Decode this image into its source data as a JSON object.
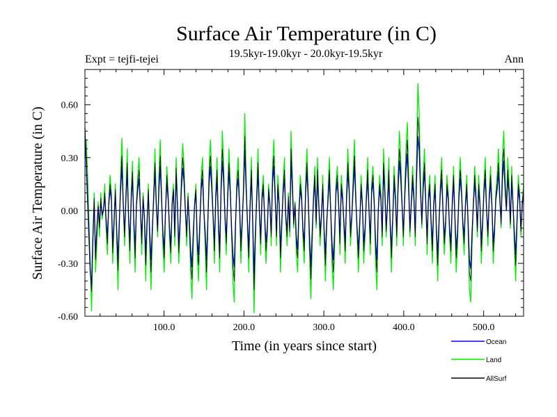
{
  "chart_data": {
    "type": "line",
    "title": "Surface Air Temperature (in C)",
    "subtitle": "19.5kyr-19.0kyr - 20.0kyr-19.5kyr",
    "expt_label": "Expt = tejfi-tejei",
    "season_label": "Ann",
    "xlabel": "Time (in years since start)",
    "ylabel": "Surface Air Temperature (in C)",
    "xlim": [
      1,
      550
    ],
    "ylim": [
      -0.6,
      0.8
    ],
    "xticks": [
      100,
      200,
      300,
      400,
      500
    ],
    "xtick_labels": [
      "100.0",
      "200.0",
      "300.0",
      "400.0",
      "500.0"
    ],
    "yticks": [
      -0.6,
      -0.3,
      0.0,
      0.3,
      0.6
    ],
    "ytick_labels": [
      "-0.60",
      "-0.30",
      "0.00",
      "0.30",
      "0.60"
    ],
    "zero_line": true,
    "grid": false,
    "legend_position": "bottom-right",
    "series": [
      {
        "name": "Land",
        "color": "#00ee00",
        "values": [
          0.3,
          0.4,
          0.2,
          -0.05,
          -0.3,
          -0.57,
          -0.2,
          0.1,
          -0.35,
          -0.2,
          0.05,
          -0.15,
          0.1,
          -0.05,
          0.0,
          0.15,
          -0.1,
          -0.25,
          0.05,
          0.2,
          0.1,
          -0.3,
          -0.1,
          0.15,
          -0.15,
          -0.45,
          -0.1,
          0.2,
          0.41,
          0.05,
          -0.2,
          0.1,
          0.35,
          -0.05,
          -0.3,
          0.1,
          0.28,
          -0.1,
          -0.35,
          0.05,
          0.2,
          0.3,
          0.0,
          -0.25,
          0.1,
          -0.05,
          -0.4,
          -0.1,
          0.15,
          -0.2,
          -0.45,
          -0.15,
          0.1,
          0.35,
          0.05,
          -0.15,
          0.2,
          0.4,
          0.1,
          -0.2,
          -0.35,
          0.0,
          0.25,
          0.1,
          -0.15,
          -0.3,
          0.05,
          0.15,
          -0.2,
          0.3,
          0.05,
          -0.3,
          -0.1,
          0.2,
          0.38,
          0.25,
          0.0,
          -0.2,
          0.1,
          -0.1,
          -0.35,
          -0.5,
          -0.2,
          0.05,
          0.15,
          -0.25,
          -0.4,
          -0.1,
          0.2,
          0.3,
          0.0,
          -0.2,
          -0.45,
          -0.1,
          0.25,
          0.4,
          0.2,
          -0.05,
          -0.3,
          0.1,
          0.3,
          -0.1,
          -0.35,
          0.15,
          0.45,
          0.25,
          -0.05,
          -0.25,
          0.1,
          0.35,
          0.15,
          -0.15,
          -0.4,
          -0.52,
          -0.1,
          0.2,
          0.3,
          0.05,
          -0.3,
          -0.1,
          0.15,
          0.55,
          0.2,
          -0.1,
          -0.35,
          0.05,
          0.3,
          -0.1,
          -0.58,
          -0.2,
          0.1,
          0.35,
          0.0,
          -0.25,
          0.1,
          0.2,
          -0.05,
          -0.3,
          -0.15,
          0.15,
          0.05,
          -0.2,
          0.25,
          0.4,
          0.1,
          -0.2,
          0.2,
          0.05,
          -0.35,
          -0.1,
          0.15,
          0.3,
          -0.05,
          -0.2,
          0.1,
          -0.15,
          0.45,
          0.2,
          -0.1,
          0.05,
          -0.25,
          -0.35,
          0.0,
          0.2,
          0.1,
          -0.15,
          -0.3,
          0.15,
          0.35,
          0.1,
          -0.25,
          -0.5,
          -0.2,
          0.1,
          0.25,
          -0.1,
          0.3,
          0.05,
          -0.2,
          -0.05,
          0.2,
          -0.15,
          -0.4,
          -0.1,
          0.1,
          0.3,
          0.0,
          -0.3,
          -0.45,
          -0.2,
          0.15,
          0.25,
          0.05,
          -0.25,
          0.2,
          0.1,
          -0.1,
          -0.3,
          0.1,
          0.35,
          0.15,
          -0.2,
          -0.05,
          0.2,
          0.4,
          0.1,
          -0.15,
          -0.35,
          -0.1,
          0.2,
          0.05,
          -0.3,
          -0.15,
          0.1,
          0.3,
          0.0,
          -0.25,
          0.15,
          0.25,
          0.05,
          -0.3,
          -0.45,
          0.0,
          0.2,
          0.1,
          -0.2,
          0.35,
          0.15,
          -0.15,
          0.05,
          0.3,
          -0.1,
          -0.35,
          -0.05,
          0.25,
          0.1,
          -0.2,
          0.2,
          0.45,
          0.3,
          0.05,
          -0.2,
          0.1,
          0.35,
          0.5,
          0.2,
          -0.15,
          0.05,
          0.25,
          0.1,
          -0.2,
          0.3,
          0.72,
          0.55,
          0.15,
          -0.1,
          0.2,
          0.35,
          0.05,
          -0.25,
          0.1,
          0.2,
          -0.1,
          -0.3,
          0.05,
          0.2,
          -0.15,
          -0.4,
          -0.1,
          0.15,
          0.3,
          0.0,
          -0.25,
          -0.1,
          0.2,
          0.1,
          -0.15,
          -0.3,
          0.05,
          0.25,
          -0.05,
          -0.35,
          -0.2,
          0.1,
          0.3,
          0.15,
          -0.1,
          -0.25,
          0.05,
          0.2,
          -0.1,
          -0.45,
          -0.52,
          -0.2,
          0.05,
          0.25,
          0.1,
          -0.15,
          0.2,
          0.05,
          -0.3,
          -0.1,
          0.15,
          0.3,
          0.0,
          -0.2,
          0.1,
          0.25,
          0.05,
          -0.3,
          -0.15,
          0.1,
          0.2,
          0.35,
          0.1,
          -0.1,
          0.3,
          0.45,
          0.2,
          0.0,
          0.3,
          0.15,
          -0.1,
          0.25,
          0.05,
          -0.2,
          -0.4,
          -0.1,
          0.2,
          0.1,
          -0.15,
          0.05,
          0.15
        ]
      },
      {
        "name": "Ocean",
        "color": "#0000ff",
        "values": [
          0.47,
          0.25,
          0.05,
          -0.15,
          -0.35,
          -0.42,
          -0.15,
          0.05,
          -0.25,
          -0.1,
          0.02,
          -0.08,
          0.05,
          -0.02,
          0.0,
          0.08,
          -0.05,
          -0.15,
          0.03,
          0.12,
          0.06,
          -0.2,
          -0.06,
          0.1,
          -0.1,
          -0.28,
          -0.06,
          0.12,
          0.25,
          0.03,
          -0.12,
          0.06,
          0.22,
          -0.03,
          -0.18,
          0.06,
          0.18,
          -0.06,
          -0.22,
          0.03,
          0.12,
          0.18,
          0.0,
          -0.15,
          0.06,
          -0.03,
          -0.25,
          -0.06,
          0.1,
          -0.12,
          -0.28,
          -0.1,
          0.06,
          0.22,
          0.03,
          -0.1,
          0.12,
          0.25,
          0.06,
          -0.12,
          -0.22,
          0.0,
          0.16,
          0.06,
          -0.1,
          -0.2,
          0.03,
          0.1,
          -0.12,
          0.2,
          0.03,
          -0.2,
          -0.06,
          0.12,
          0.24,
          0.16,
          0.0,
          -0.12,
          0.06,
          -0.06,
          -0.22,
          -0.32,
          -0.12,
          0.03,
          0.1,
          -0.16,
          -0.25,
          -0.06,
          0.12,
          0.18,
          0.0,
          -0.12,
          -0.28,
          -0.06,
          0.16,
          0.25,
          0.12,
          -0.03,
          -0.18,
          0.06,
          0.18,
          -0.06,
          -0.22,
          0.1,
          0.28,
          0.16,
          -0.03,
          -0.15,
          0.06,
          0.22,
          0.1,
          -0.1,
          -0.25,
          -0.32,
          -0.06,
          0.12,
          0.18,
          0.03,
          -0.18,
          -0.06,
          0.1,
          0.34,
          0.12,
          -0.06,
          -0.22,
          0.03,
          0.18,
          -0.06,
          -0.36,
          -0.12,
          0.06,
          0.22,
          0.0,
          -0.15,
          0.06,
          0.12,
          -0.03,
          -0.18,
          -0.1,
          0.1,
          0.03,
          -0.12,
          0.16,
          0.25,
          0.06,
          -0.12,
          0.12,
          0.03,
          -0.22,
          -0.06,
          0.1,
          0.18,
          -0.03,
          -0.12,
          0.06,
          -0.1,
          0.28,
          0.12,
          -0.06,
          0.03,
          -0.15,
          -0.22,
          0.0,
          0.12,
          0.06,
          -0.1,
          -0.18,
          0.1,
          0.22,
          0.06,
          -0.15,
          -0.32,
          -0.12,
          0.06,
          0.16,
          -0.06,
          0.18,
          0.03,
          -0.12,
          -0.03,
          0.12,
          -0.1,
          -0.25,
          -0.06,
          0.06,
          0.18,
          0.0,
          -0.18,
          -0.28,
          -0.12,
          0.1,
          0.16,
          0.03,
          -0.15,
          0.12,
          0.06,
          -0.06,
          -0.18,
          0.06,
          0.22,
          0.1,
          -0.12,
          -0.03,
          0.12,
          0.25,
          0.06,
          -0.1,
          -0.22,
          -0.06,
          0.12,
          0.03,
          -0.18,
          -0.1,
          0.06,
          0.18,
          0.0,
          -0.15,
          0.1,
          0.16,
          0.03,
          -0.18,
          -0.28,
          0.0,
          0.12,
          0.06,
          -0.12,
          0.22,
          0.1,
          -0.1,
          0.03,
          0.18,
          -0.06,
          -0.22,
          -0.03,
          0.16,
          0.06,
          -0.12,
          0.12,
          0.28,
          0.18,
          0.03,
          -0.12,
          0.06,
          0.22,
          0.32,
          0.12,
          -0.1,
          0.03,
          0.16,
          0.06,
          -0.12,
          0.18,
          0.42,
          0.34,
          0.1,
          -0.06,
          0.12,
          0.22,
          0.03,
          -0.15,
          0.06,
          0.12,
          -0.06,
          -0.18,
          0.03,
          0.12,
          -0.1,
          -0.25,
          -0.06,
          0.1,
          0.18,
          0.0,
          -0.15,
          -0.06,
          0.12,
          0.06,
          -0.1,
          -0.18,
          0.03,
          0.16,
          -0.03,
          -0.22,
          -0.12,
          0.06,
          0.18,
          0.1,
          -0.06,
          -0.15,
          0.03,
          0.12,
          -0.06,
          -0.28,
          -0.33,
          -0.12,
          0.03,
          0.16,
          0.06,
          -0.1,
          0.12,
          0.03,
          -0.18,
          -0.06,
          0.1,
          0.18,
          0.0,
          -0.12,
          0.06,
          0.16,
          0.03,
          -0.18,
          -0.1,
          0.06,
          0.12,
          0.22,
          0.06,
          -0.06,
          0.18,
          0.28,
          0.12,
          0.0,
          0.18,
          0.1,
          -0.06,
          0.16,
          0.03,
          -0.12,
          -0.25,
          -0.06,
          0.12,
          0.06,
          -0.1,
          0.03,
          0.1
        ]
      },
      {
        "name": "AllSurf",
        "color": "#000000",
        "values": [
          0.42,
          0.3,
          0.1,
          -0.1,
          -0.33,
          -0.46,
          -0.17,
          0.07,
          -0.28,
          -0.14,
          0.03,
          -0.1,
          0.07,
          -0.03,
          0.0,
          0.1,
          -0.07,
          -0.19,
          0.04,
          0.15,
          0.08,
          -0.24,
          -0.08,
          0.12,
          -0.12,
          -0.34,
          -0.08,
          0.15,
          0.31,
          0.04,
          -0.15,
          0.08,
          0.27,
          -0.04,
          -0.23,
          0.08,
          0.22,
          -0.08,
          -0.27,
          0.04,
          0.15,
          0.23,
          0.0,
          -0.19,
          0.08,
          -0.04,
          -0.31,
          -0.08,
          0.12,
          -0.15,
          -0.35,
          -0.12,
          0.08,
          0.27,
          0.04,
          -0.12,
          0.15,
          0.31,
          0.08,
          -0.15,
          -0.27,
          0.0,
          0.2,
          0.08,
          -0.12,
          -0.24,
          0.04,
          0.12,
          -0.15,
          0.24,
          0.04,
          -0.24,
          -0.08,
          0.15,
          0.3,
          0.2,
          0.0,
          -0.15,
          0.08,
          -0.08,
          -0.27,
          -0.39,
          -0.15,
          0.04,
          0.12,
          -0.2,
          -0.31,
          -0.08,
          0.15,
          0.23,
          0.0,
          -0.15,
          -0.35,
          -0.08,
          0.2,
          0.31,
          0.15,
          -0.04,
          -0.23,
          0.08,
          0.23,
          -0.08,
          -0.27,
          0.12,
          0.35,
          0.2,
          -0.04,
          -0.19,
          0.08,
          0.27,
          0.12,
          -0.12,
          -0.31,
          -0.4,
          -0.08,
          0.15,
          0.23,
          0.04,
          -0.23,
          -0.08,
          0.12,
          0.42,
          0.15,
          -0.08,
          -0.27,
          0.04,
          0.23,
          -0.08,
          -0.45,
          -0.15,
          0.08,
          0.27,
          0.0,
          -0.19,
          0.08,
          0.15,
          -0.04,
          -0.23,
          -0.12,
          0.12,
          0.04,
          -0.15,
          0.2,
          0.31,
          0.08,
          -0.15,
          0.15,
          0.04,
          -0.27,
          -0.08,
          0.12,
          0.23,
          -0.04,
          -0.15,
          0.08,
          -0.12,
          0.35,
          0.15,
          -0.08,
          0.04,
          -0.19,
          -0.27,
          0.0,
          0.15,
          0.08,
          -0.12,
          -0.23,
          0.12,
          0.27,
          0.08,
          -0.19,
          -0.39,
          -0.15,
          0.08,
          0.2,
          -0.08,
          0.23,
          0.04,
          -0.15,
          -0.04,
          0.15,
          -0.12,
          -0.31,
          -0.08,
          0.08,
          0.23,
          0.0,
          -0.23,
          -0.35,
          -0.15,
          0.12,
          0.2,
          0.04,
          -0.19,
          0.15,
          0.08,
          -0.08,
          -0.23,
          0.08,
          0.27,
          0.12,
          -0.15,
          -0.04,
          0.15,
          0.31,
          0.08,
          -0.12,
          -0.27,
          -0.08,
          0.15,
          0.04,
          -0.23,
          -0.12,
          0.08,
          0.23,
          0.0,
          -0.19,
          0.12,
          0.2,
          0.04,
          -0.23,
          -0.35,
          0.0,
          0.15,
          0.08,
          -0.15,
          0.27,
          0.12,
          -0.12,
          0.04,
          0.23,
          -0.08,
          -0.27,
          -0.04,
          0.2,
          0.08,
          -0.15,
          0.15,
          0.35,
          0.23,
          0.04,
          -0.15,
          0.08,
          0.27,
          0.4,
          0.15,
          -0.12,
          0.04,
          0.2,
          0.08,
          -0.15,
          0.23,
          0.53,
          0.42,
          0.12,
          -0.08,
          0.15,
          0.27,
          0.04,
          -0.19,
          0.08,
          0.15,
          -0.08,
          -0.23,
          0.04,
          0.15,
          -0.12,
          -0.31,
          -0.08,
          0.12,
          0.23,
          0.0,
          -0.19,
          -0.08,
          0.15,
          0.08,
          -0.12,
          -0.23,
          0.04,
          0.2,
          -0.04,
          -0.27,
          -0.15,
          0.08,
          0.23,
          0.12,
          -0.08,
          -0.19,
          0.04,
          0.15,
          -0.08,
          -0.35,
          -0.4,
          -0.15,
          0.04,
          0.2,
          0.08,
          -0.12,
          0.15,
          0.04,
          -0.23,
          -0.08,
          0.12,
          0.23,
          0.0,
          -0.15,
          0.08,
          0.2,
          0.04,
          -0.23,
          -0.12,
          0.08,
          0.15,
          0.27,
          0.08,
          -0.08,
          0.23,
          0.35,
          0.15,
          0.0,
          0.23,
          0.12,
          -0.08,
          0.2,
          0.04,
          -0.15,
          -0.31,
          -0.08,
          0.15,
          0.08,
          -0.12,
          0.04,
          0.12
        ]
      }
    ]
  }
}
